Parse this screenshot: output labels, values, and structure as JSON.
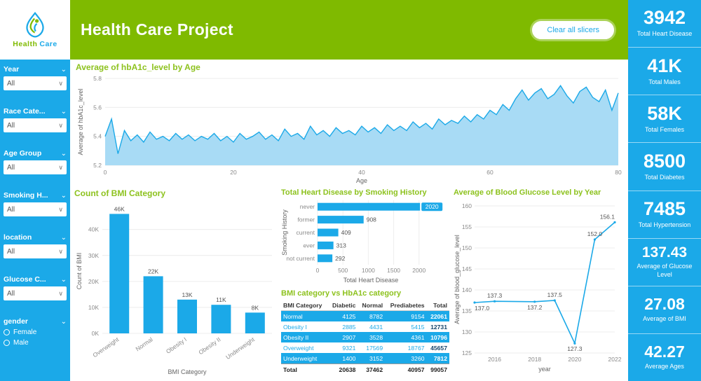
{
  "header": {
    "title": "Health Care Project",
    "clear_button": "Clear all slicers"
  },
  "logo": {
    "word1": "Health",
    "word2": "Care"
  },
  "sidebar": {
    "slicers": [
      {
        "label": "Year",
        "type": "dropdown",
        "value": "All"
      },
      {
        "label": "Race Cate...",
        "type": "dropdown",
        "value": "All"
      },
      {
        "label": "Age Group",
        "type": "dropdown",
        "value": "All"
      },
      {
        "label": "Smoking H...",
        "type": "dropdown",
        "value": "All"
      },
      {
        "label": "location",
        "type": "dropdown",
        "value": "All"
      },
      {
        "label": "Glucose C...",
        "type": "dropdown",
        "value": "All"
      },
      {
        "label": "gender",
        "type": "radio",
        "options": [
          "Female",
          "Male"
        ]
      }
    ]
  },
  "kpis": [
    {
      "value": "3942",
      "label": "Total Heart Disease"
    },
    {
      "value": "41K",
      "label": "Total Males"
    },
    {
      "value": "58K",
      "label": "Total Females"
    },
    {
      "value": "8500",
      "label": "Total Diabetes"
    },
    {
      "value": "7485",
      "label": "Total Hypertension"
    },
    {
      "value": "137.43",
      "label": "Average of Glucose Level"
    },
    {
      "value": "27.08",
      "label": "Average of BMI"
    },
    {
      "value": "42.27",
      "label": "Average Ages"
    }
  ],
  "chart_data": [
    {
      "id": "hba1c_by_age",
      "type": "area",
      "title": "Average of hbA1c_level by Age",
      "xlabel": "Age",
      "ylabel": "Average of hbA1c_level",
      "xlim": [
        0,
        80
      ],
      "ylim": [
        5.2,
        5.8
      ],
      "xticks": [
        0,
        20,
        40,
        60,
        80
      ],
      "yticks": [
        5.2,
        5.4,
        5.6,
        5.8
      ],
      "y": [
        5.4,
        5.52,
        5.28,
        5.44,
        5.37,
        5.41,
        5.36,
        5.43,
        5.38,
        5.4,
        5.37,
        5.42,
        5.38,
        5.41,
        5.37,
        5.4,
        5.38,
        5.42,
        5.37,
        5.4,
        5.36,
        5.42,
        5.38,
        5.4,
        5.43,
        5.38,
        5.41,
        5.37,
        5.45,
        5.4,
        5.42,
        5.38,
        5.47,
        5.41,
        5.44,
        5.4,
        5.46,
        5.42,
        5.44,
        5.41,
        5.47,
        5.43,
        5.46,
        5.42,
        5.48,
        5.44,
        5.47,
        5.44,
        5.5,
        5.46,
        5.49,
        5.45,
        5.52,
        5.48,
        5.51,
        5.49,
        5.54,
        5.5,
        5.55,
        5.52,
        5.58,
        5.55,
        5.62,
        5.58,
        5.66,
        5.72,
        5.65,
        5.7,
        5.73,
        5.66,
        5.69,
        5.75,
        5.68,
        5.63,
        5.71,
        5.74,
        5.67,
        5.64,
        5.72,
        5.58,
        5.7
      ]
    },
    {
      "id": "bmi_count",
      "type": "bar",
      "title": "Count of BMI Category",
      "xlabel": "BMI Category",
      "ylabel": "Count of BMI",
      "categories": [
        "Overweight",
        "Normal",
        "Obesity I",
        "Obesity II",
        "Underweight"
      ],
      "values": [
        46000,
        22000,
        13000,
        11000,
        8000
      ],
      "labels": [
        "46K",
        "22K",
        "13K",
        "11K",
        "8K"
      ],
      "yticks": [
        "0K",
        "10K",
        "20K",
        "30K",
        "40K"
      ],
      "ylim": [
        0,
        48000
      ]
    },
    {
      "id": "heart_disease_by_smoking",
      "type": "bar-horizontal",
      "title": "Total Heart Disease by Smoking History",
      "xlabel": "Total Heart Disease",
      "ylabel": "Smoking History",
      "categories": [
        "never",
        "former",
        "current",
        "ever",
        "not current"
      ],
      "values": [
        2020,
        908,
        409,
        313,
        292
      ],
      "xticks": [
        0,
        500,
        1000,
        1500,
        2000
      ],
      "xlim": [
        0,
        2100
      ],
      "highlighted_label": "2020"
    },
    {
      "id": "bmi_vs_hba1c_table",
      "type": "table",
      "title": "BMI category vs HbA1c category",
      "columns": [
        "BMI Category",
        "Diabetic",
        "Normal",
        "Prediabetes",
        "Total"
      ],
      "rows": [
        [
          "Normal",
          "4125",
          "8782",
          "9154",
          "22061"
        ],
        [
          "Obesity I",
          "2885",
          "4431",
          "5415",
          "12731"
        ],
        [
          "Obesity II",
          "2907",
          "3528",
          "4361",
          "10796"
        ],
        [
          "Overweight",
          "9321",
          "17569",
          "18767",
          "45657"
        ],
        [
          "Underweight",
          "1400",
          "3152",
          "3260",
          "7812"
        ]
      ],
      "total_row": [
        "Total",
        "20638",
        "37462",
        "40957",
        "99057"
      ]
    },
    {
      "id": "glucose_by_year",
      "type": "line",
      "title": "Average of Blood Glucose Level by Year",
      "xlabel": "year",
      "ylabel": "Average of blood_glucose_level",
      "x": [
        2015,
        2016,
        2018,
        2019,
        2020,
        2021,
        2022
      ],
      "y": [
        137.0,
        137.3,
        137.2,
        137.5,
        127.3,
        152.0,
        156.1
      ],
      "xticks": [
        2016,
        2018,
        2020,
        2022
      ],
      "ylim": [
        125,
        160
      ],
      "yticks": [
        125,
        130,
        135,
        140,
        145,
        150,
        155,
        160
      ]
    }
  ],
  "colors": {
    "blue": "#1BA9E8",
    "green": "#7FBA00",
    "title_green": "#8DC21E",
    "area_fill": "#A8DBF5"
  }
}
